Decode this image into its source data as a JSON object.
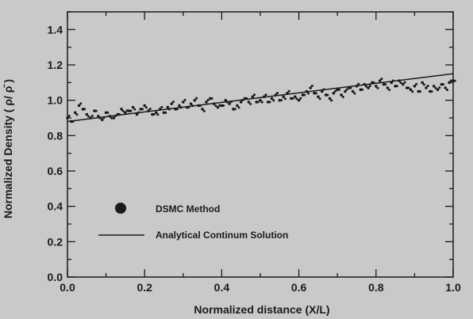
{
  "chart_data": {
    "type": "scatter",
    "xlabel": "Normalized distance (X/L)",
    "ylabel": "Normalized Density ( ρ/ ρ̄ )",
    "xlim": [
      0.0,
      1.0
    ],
    "ylim": [
      0.0,
      1.5
    ],
    "x_ticks": [
      "0.0",
      "0.2",
      "0.4",
      "0.6",
      "0.8",
      "1.0"
    ],
    "y_ticks": [
      "0.0",
      "0.2",
      "0.4",
      "0.6",
      "0.8",
      "1.0",
      "1.2",
      "1.4"
    ],
    "grid": false,
    "legend_position": "lower-left",
    "colors": {
      "background": "#c9c9c9",
      "ink": "#1a1a1a"
    },
    "series": [
      {
        "name": "DSMC Method",
        "kind": "scatter",
        "x": [
          0.0,
          0.01,
          0.02,
          0.03,
          0.04,
          0.05,
          0.06,
          0.07,
          0.08,
          0.09,
          0.1,
          0.11,
          0.12,
          0.13,
          0.14,
          0.15,
          0.16,
          0.17,
          0.18,
          0.19,
          0.2,
          0.21,
          0.22,
          0.23,
          0.24,
          0.25,
          0.26,
          0.27,
          0.28,
          0.29,
          0.3,
          0.31,
          0.32,
          0.33,
          0.34,
          0.35,
          0.36,
          0.37,
          0.38,
          0.39,
          0.4,
          0.41,
          0.42,
          0.43,
          0.44,
          0.45,
          0.46,
          0.47,
          0.48,
          0.49,
          0.5,
          0.51,
          0.52,
          0.53,
          0.54,
          0.55,
          0.56,
          0.57,
          0.58,
          0.59,
          0.6,
          0.61,
          0.62,
          0.63,
          0.64,
          0.65,
          0.66,
          0.67,
          0.68,
          0.69,
          0.7,
          0.71,
          0.72,
          0.73,
          0.74,
          0.75,
          0.76,
          0.77,
          0.78,
          0.79,
          0.8,
          0.81,
          0.82,
          0.83,
          0.84,
          0.85,
          0.86,
          0.87,
          0.88,
          0.89,
          0.9,
          0.91,
          0.92,
          0.93,
          0.94,
          0.95,
          0.96,
          0.97,
          0.98,
          0.99,
          1.0
        ],
        "y": [
          0.9,
          0.88,
          0.93,
          0.97,
          0.95,
          0.92,
          0.9,
          0.94,
          0.91,
          0.89,
          0.93,
          0.91,
          0.9,
          0.92,
          0.95,
          0.93,
          0.94,
          0.96,
          0.92,
          0.95,
          0.97,
          0.94,
          0.92,
          0.93,
          0.95,
          0.93,
          0.96,
          0.98,
          0.95,
          0.97,
          0.99,
          0.96,
          0.98,
          1.0,
          0.97,
          0.95,
          0.99,
          1.01,
          0.98,
          0.96,
          0.97,
          1.0,
          0.98,
          0.95,
          0.97,
          0.99,
          1.01,
          0.99,
          1.02,
          0.99,
          1.0,
          1.02,
          0.99,
          1.01,
          1.03,
          1.0,
          1.02,
          1.04,
          1.01,
          1.02,
          1.0,
          1.03,
          1.05,
          1.07,
          1.04,
          1.02,
          1.05,
          1.03,
          1.01,
          1.04,
          1.06,
          1.03,
          1.05,
          1.07,
          1.05,
          1.08,
          1.06,
          1.09,
          1.07,
          1.1,
          1.08,
          1.11,
          1.09,
          1.07,
          1.1,
          1.08,
          1.11,
          1.09,
          1.07,
          1.06,
          1.08,
          1.05,
          1.1,
          1.07,
          1.05,
          1.08,
          1.06,
          1.09,
          1.07,
          1.1,
          1.11
        ]
      },
      {
        "name": "Analytical Continum Solution",
        "kind": "line",
        "x": [
          0.0,
          1.0
        ],
        "y": [
          0.88,
          1.15
        ]
      }
    ]
  }
}
